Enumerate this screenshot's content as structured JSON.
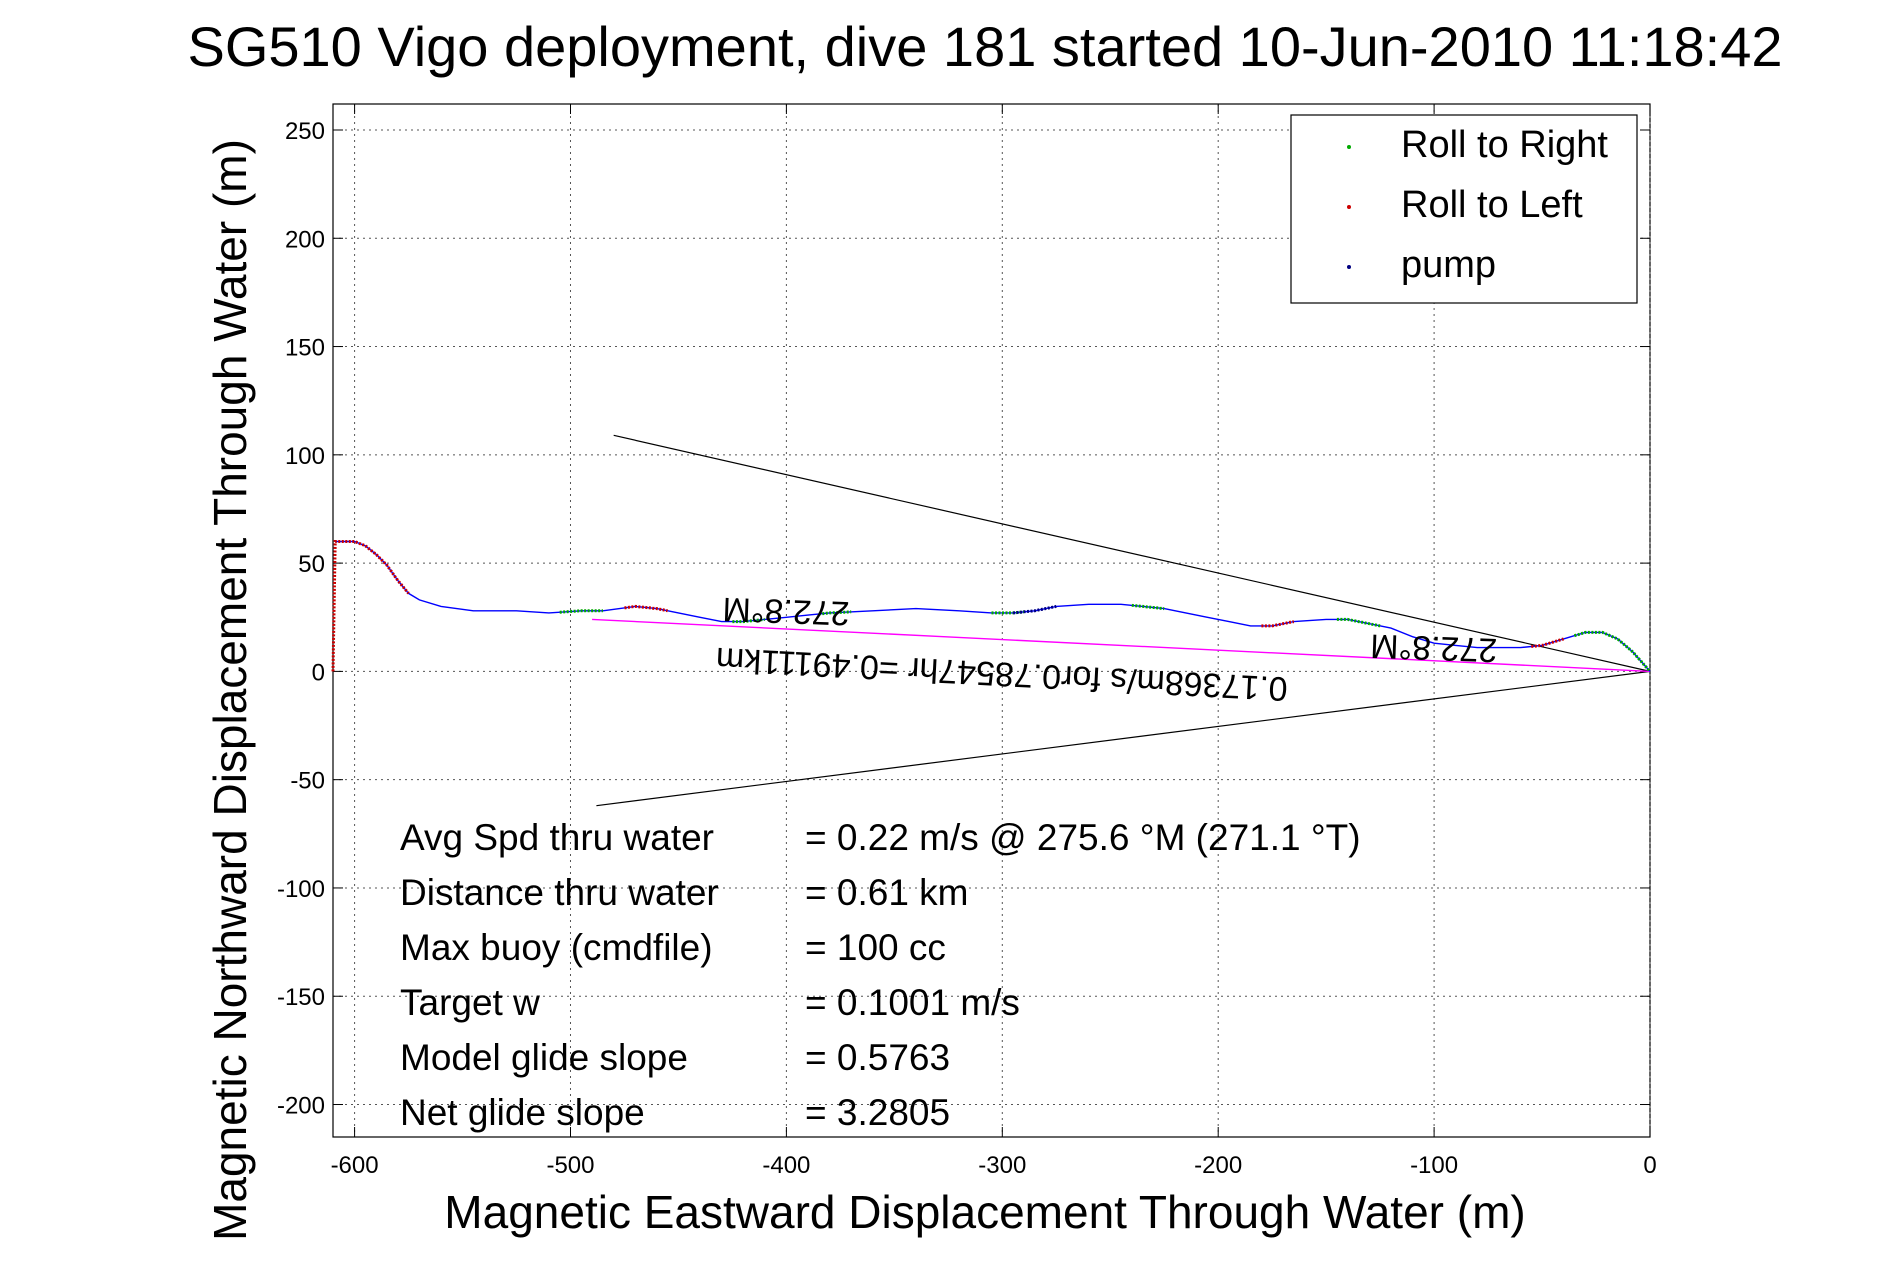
{
  "chart_data": {
    "type": "line",
    "title": "SG510 Vigo deployment, dive 181 started 10-Jun-2010 11:18:42",
    "xlabel": "Magnetic Eastward Displacement Through Water (m)",
    "ylabel": "Magnetic Northward Displacement Through Water (m)",
    "xlim": [
      -610,
      0
    ],
    "ylim": [
      -215,
      262
    ],
    "xticks": [
      -600,
      -500,
      -400,
      -300,
      -200,
      -100,
      0
    ],
    "yticks": [
      -200,
      -150,
      -100,
      -50,
      0,
      50,
      100,
      150,
      200,
      250
    ],
    "grid": true,
    "legend_position": "top-right",
    "colors": {
      "track": "#0000ff",
      "roll_right": "#00aa00",
      "roll_left": "#cc0000",
      "pump": "#000080",
      "fan": "#000000",
      "heading_line": "#ff00ff"
    },
    "legend": [
      {
        "label": "Roll to Right",
        "color": "#00aa00"
      },
      {
        "label": "Roll to Left",
        "color": "#cc0000"
      },
      {
        "label": "pump",
        "color": "#000080"
      }
    ],
    "series": [
      {
        "name": "track",
        "points": [
          [
            -609,
            60
          ],
          [
            -600,
            60
          ],
          [
            -595,
            58
          ],
          [
            -590,
            54
          ],
          [
            -585,
            49
          ],
          [
            -580,
            42
          ],
          [
            -575,
            36
          ],
          [
            -570,
            33
          ],
          [
            -560,
            30
          ],
          [
            -545,
            28
          ],
          [
            -525,
            28
          ],
          [
            -510,
            27
          ],
          [
            -495,
            28
          ],
          [
            -485,
            28
          ],
          [
            -470,
            30
          ],
          [
            -460,
            29
          ],
          [
            -450,
            27
          ],
          [
            -440,
            25
          ],
          [
            -430,
            23
          ],
          [
            -420,
            23
          ],
          [
            -410,
            24
          ],
          [
            -400,
            25
          ],
          [
            -390,
            26
          ],
          [
            -380,
            27
          ],
          [
            -360,
            28
          ],
          [
            -340,
            29
          ],
          [
            -320,
            28
          ],
          [
            -305,
            27
          ],
          [
            -295,
            27
          ],
          [
            -285,
            28
          ],
          [
            -275,
            30
          ],
          [
            -260,
            31
          ],
          [
            -245,
            31
          ],
          [
            -235,
            30
          ],
          [
            -225,
            29
          ],
          [
            -215,
            27
          ],
          [
            -205,
            25
          ],
          [
            -195,
            23
          ],
          [
            -185,
            21
          ],
          [
            -175,
            21
          ],
          [
            -165,
            23
          ],
          [
            -150,
            24
          ],
          [
            -140,
            24
          ],
          [
            -130,
            22
          ],
          [
            -120,
            20
          ],
          [
            -110,
            16
          ],
          [
            -100,
            13
          ],
          [
            -90,
            12
          ],
          [
            -80,
            11
          ],
          [
            -70,
            11
          ],
          [
            -60,
            11
          ],
          [
            -50,
            12
          ],
          [
            -40,
            15
          ],
          [
            -30,
            18
          ],
          [
            -22,
            18
          ],
          [
            -15,
            15
          ],
          [
            -8,
            9
          ],
          [
            0,
            0
          ]
        ]
      }
    ],
    "roll_right_segments": [
      [
        -505,
        -485
      ],
      [
        -425,
        -410
      ],
      [
        -385,
        -370
      ],
      [
        -305,
        -290
      ],
      [
        -240,
        -225
      ],
      [
        -145,
        -125
      ],
      [
        -35,
        0
      ]
    ],
    "roll_left_segments": [
      [
        -610,
        -575
      ],
      [
        -475,
        -455
      ],
      [
        -180,
        -165
      ],
      [
        -55,
        -40
      ]
    ],
    "pump_segments": [
      [
        -295,
        -275
      ]
    ],
    "fan_lines": [
      {
        "from": [
          0,
          0
        ],
        "to": [
          -480,
          109
        ]
      },
      {
        "from": [
          0,
          0
        ],
        "to": [
          -488,
          -62
        ]
      }
    ],
    "heading_line": {
      "from": [
        0,
        0
      ],
      "to": [
        -490,
        24
      ]
    },
    "annotations": [
      {
        "text": "272.8°M",
        "x": -400,
        "y": 33,
        "rotate": 182
      },
      {
        "text": "272.8°M",
        "x": -100,
        "y": 16,
        "rotate": 182
      },
      {
        "text": "0.17368m/s for0.78547hr =0.49111km",
        "x": -300,
        "y": 4,
        "rotate": 183
      }
    ],
    "stats": [
      {
        "label": "Avg Spd thru water",
        "value": "=  0.22 m/s @ 275.6 °M (271.1 °T)"
      },
      {
        "label": "Distance thru water",
        "value": "=  0.61 km"
      },
      {
        "label": "Max buoy (cmdfile)",
        "value": "= 100 cc"
      },
      {
        "label": "Target w",
        "value": "= 0.1001 m/s"
      },
      {
        "label": "Model glide slope",
        "value": "= 0.5763"
      },
      {
        "label": "Net glide slope",
        "value": "= 3.2805"
      }
    ]
  }
}
